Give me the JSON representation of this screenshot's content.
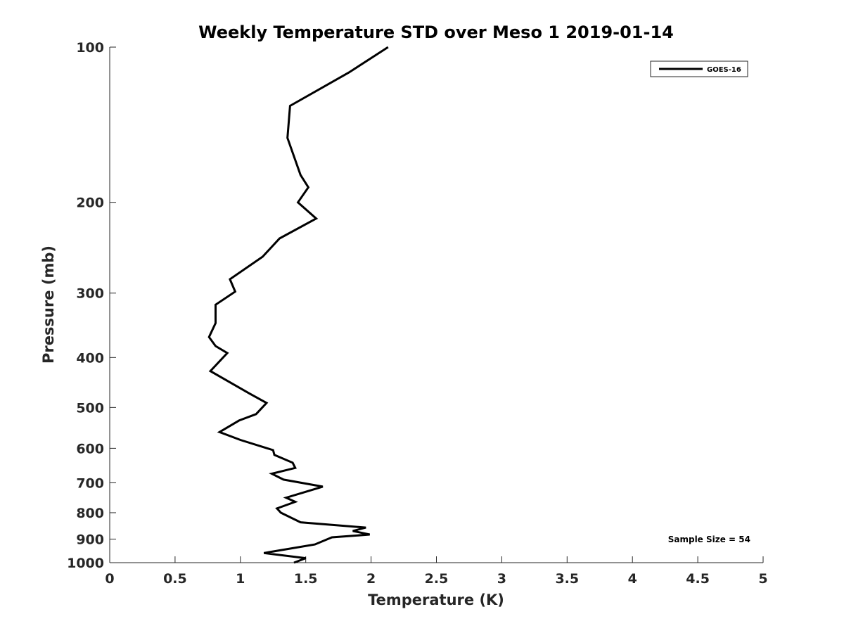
{
  "chart_data": {
    "type": "line",
    "title": "Weekly Temperature STD over Meso 1 2019-01-14",
    "xlabel": "Temperature (K)",
    "ylabel": "Pressure (mb)",
    "xlim": [
      0,
      5
    ],
    "ylim": [
      1000,
      100
    ],
    "y_scale": "log",
    "y_reversed": true,
    "grid": false,
    "legend_position": "top-right",
    "xticks": [
      0,
      0.5,
      1,
      1.5,
      2,
      2.5,
      3,
      3.5,
      4,
      4.5,
      5
    ],
    "xtick_labels": [
      "0",
      "0.5",
      "1",
      "1.5",
      "2",
      "2.5",
      "3",
      "3.5",
      "4",
      "4.5",
      "5"
    ],
    "yticks": [
      100,
      200,
      300,
      400,
      500,
      600,
      700,
      800,
      900,
      1000
    ],
    "ytick_labels": [
      "100",
      "200",
      "300",
      "400",
      "500",
      "600",
      "700",
      "800",
      "900",
      "1000"
    ],
    "series": [
      {
        "name": "GOES-16",
        "color": "#000000",
        "x": [
          2.13,
          1.83,
          1.38,
          1.36,
          1.46,
          1.52,
          1.44,
          1.58,
          1.3,
          1.17,
          0.92,
          0.96,
          0.81,
          0.81,
          0.76,
          0.81,
          0.9,
          0.77,
          1.07,
          1.2,
          1.12,
          0.99,
          0.84,
          1.0,
          1.25,
          1.26,
          1.4,
          1.42,
          1.24,
          1.33,
          1.63,
          1.49,
          1.35,
          1.42,
          1.28,
          1.31,
          1.46,
          1.96,
          1.86,
          1.99,
          1.7,
          1.57,
          1.18,
          1.5,
          1.41
        ],
        "y": [
          100,
          112,
          130,
          150,
          177,
          187,
          200,
          215,
          235,
          255,
          282,
          298,
          316,
          343,
          365,
          380,
          392,
          425,
          470,
          490,
          515,
          530,
          558,
          578,
          605,
          618,
          640,
          655,
          672,
          690,
          712,
          730,
          748,
          762,
          785,
          800,
          835,
          855,
          868,
          882,
          893,
          922,
          958,
          980,
          1000
        ]
      }
    ],
    "annotation": "Sample Size = 54"
  }
}
